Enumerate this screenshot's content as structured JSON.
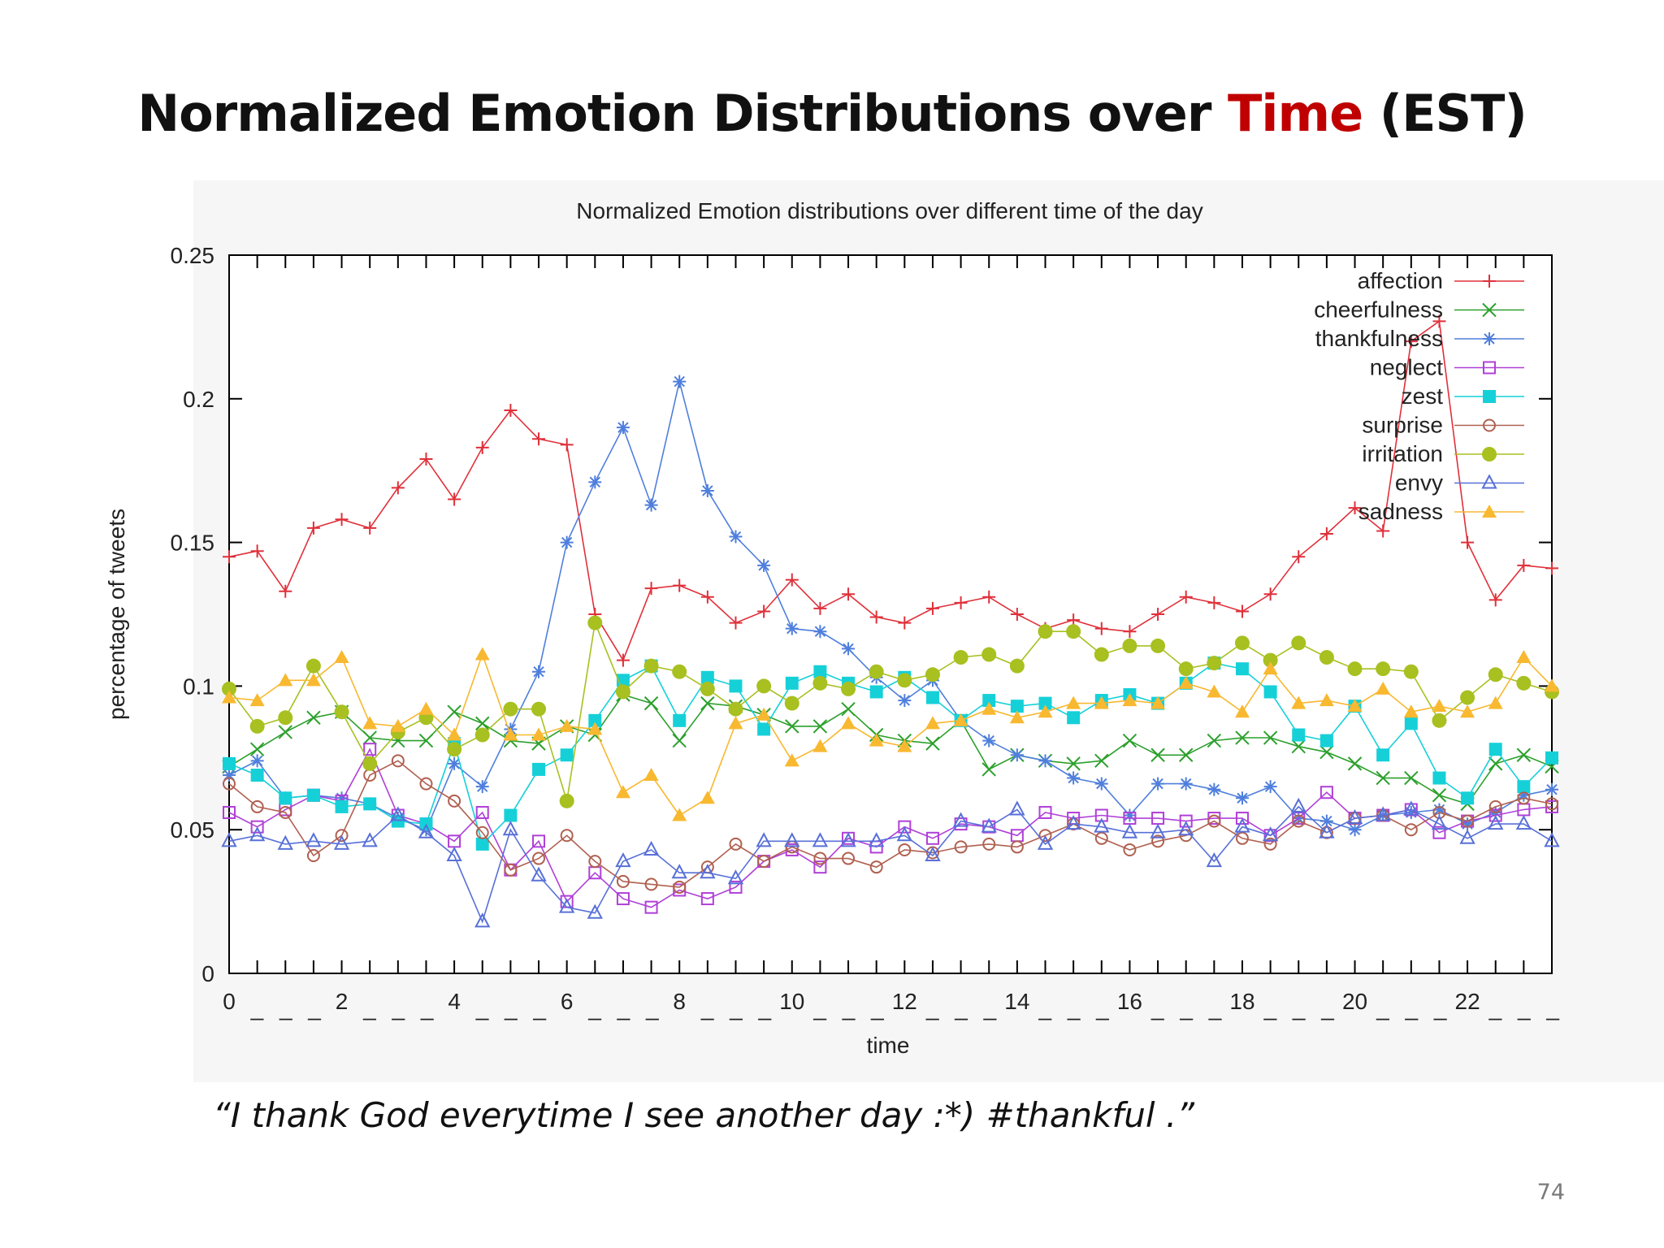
{
  "slide": {
    "title_part1": "Normalized Emotion Distributions over ",
    "title_accent": "Time",
    "title_part2": " (EST)",
    "quote": "“I thank God everytime I see another day :*) #thankful .”",
    "page_number": "74"
  },
  "chart_data": {
    "type": "line",
    "title": "Normalized Emotion distributions over different time of the day",
    "xlabel": "time",
    "ylabel": "percentage of tweets",
    "xlim": [
      0,
      23.5
    ],
    "ylim": [
      0,
      0.25
    ],
    "x_tick_labels": [
      "0",
      "2",
      "4",
      "6",
      "8",
      "10",
      "12",
      "14",
      "16",
      "18",
      "20",
      "22"
    ],
    "y_tick_labels": [
      "0",
      "0.05",
      "0.1",
      "0.15",
      "0.2",
      "0.25"
    ],
    "x_ticks_placeholder": "_ _ _",
    "legend_position": "top-right",
    "grid": false,
    "x": [
      0,
      0.5,
      1,
      1.5,
      2,
      2.5,
      3,
      3.5,
      4,
      4.5,
      5,
      5.5,
      6,
      6.5,
      7,
      7.5,
      8,
      8.5,
      9,
      9.5,
      10,
      10.5,
      11,
      11.5,
      12,
      12.5,
      13,
      13.5,
      14,
      14.5,
      15,
      15.5,
      16,
      16.5,
      17,
      17.5,
      18,
      18.5,
      19,
      19.5,
      20,
      20.5,
      21,
      21.5,
      22,
      22.5,
      23,
      23.5
    ],
    "series": [
      {
        "name": "affection",
        "color": "#e0303a",
        "marker": "plus",
        "values": [
          0.145,
          0.147,
          0.133,
          0.155,
          0.158,
          0.155,
          0.169,
          0.179,
          0.165,
          0.183,
          0.196,
          0.186,
          0.184,
          0.125,
          0.109,
          0.134,
          0.135,
          0.131,
          0.122,
          0.126,
          0.137,
          0.127,
          0.132,
          0.124,
          0.122,
          0.127,
          0.129,
          0.131,
          0.125,
          0.12,
          0.123,
          0.12,
          0.119,
          0.125,
          0.131,
          0.129,
          0.126,
          0.132,
          0.145,
          0.153,
          0.162,
          0.154,
          0.22,
          0.227,
          0.15,
          0.13,
          0.142,
          0.141
        ]
      },
      {
        "name": "cheerfulness",
        "color": "#2ca02c",
        "marker": "x",
        "values": [
          0.072,
          0.078,
          0.084,
          0.089,
          0.091,
          0.082,
          0.081,
          0.081,
          0.091,
          0.087,
          0.081,
          0.08,
          0.086,
          0.083,
          0.097,
          0.094,
          0.081,
          0.094,
          0.093,
          0.09,
          0.086,
          0.086,
          0.092,
          0.083,
          0.081,
          0.08,
          0.088,
          0.071,
          0.076,
          0.074,
          0.073,
          0.074,
          0.081,
          0.076,
          0.076,
          0.081,
          0.082,
          0.082,
          0.079,
          0.077,
          0.073,
          0.068,
          0.068,
          0.062,
          0.059,
          0.073,
          0.076,
          0.072
        ]
      },
      {
        "name": "thankfulness",
        "color": "#4f7fdc",
        "marker": "star",
        "values": [
          0.069,
          0.074,
          0.061,
          0.062,
          0.061,
          0.059,
          0.054,
          0.05,
          0.073,
          0.065,
          0.085,
          0.105,
          0.15,
          0.171,
          0.19,
          0.163,
          0.206,
          0.168,
          0.152,
          0.142,
          0.12,
          0.119,
          0.113,
          0.103,
          0.095,
          0.102,
          0.088,
          0.081,
          0.076,
          0.074,
          0.068,
          0.066,
          0.055,
          0.066,
          0.066,
          0.064,
          0.061,
          0.065,
          0.054,
          0.053,
          0.05,
          0.055,
          0.056,
          0.057,
          0.052,
          0.056,
          0.062,
          0.064
        ]
      },
      {
        "name": "neglect",
        "color": "#b040d8",
        "marker": "square-open",
        "values": [
          0.056,
          0.051,
          0.057,
          0.062,
          0.06,
          0.078,
          0.055,
          0.052,
          0.046,
          0.056,
          0.036,
          0.046,
          0.025,
          0.035,
          0.026,
          0.023,
          0.029,
          0.026,
          0.03,
          0.039,
          0.043,
          0.037,
          0.047,
          0.044,
          0.051,
          0.047,
          0.052,
          0.051,
          0.048,
          0.056,
          0.054,
          0.055,
          0.054,
          0.054,
          0.053,
          0.054,
          0.054,
          0.048,
          0.054,
          0.063,
          0.054,
          0.055,
          0.057,
          0.049,
          0.053,
          0.055,
          0.057,
          0.058
        ]
      },
      {
        "name": "zest",
        "color": "#16d0d8",
        "marker": "square-filled",
        "values": [
          0.073,
          0.069,
          0.061,
          0.062,
          0.058,
          0.059,
          0.053,
          0.052,
          0.08,
          0.045,
          0.055,
          0.071,
          0.076,
          0.088,
          0.102,
          0.107,
          0.088,
          0.103,
          0.1,
          0.085,
          0.101,
          0.105,
          0.101,
          0.098,
          0.103,
          0.096,
          0.088,
          0.095,
          0.093,
          0.094,
          0.089,
          0.095,
          0.097,
          0.094,
          0.101,
          0.108,
          0.106,
          0.098,
          0.083,
          0.081,
          0.093,
          0.076,
          0.087,
          0.068,
          0.061,
          0.078,
          0.065,
          0.075
        ]
      },
      {
        "name": "surprise",
        "color": "#b06050",
        "marker": "circle-open",
        "values": [
          0.066,
          0.058,
          0.056,
          0.041,
          0.048,
          0.069,
          0.074,
          0.066,
          0.06,
          0.049,
          0.036,
          0.04,
          0.048,
          0.039,
          0.032,
          0.031,
          0.03,
          0.037,
          0.045,
          0.039,
          0.044,
          0.04,
          0.04,
          0.037,
          0.043,
          0.042,
          0.044,
          0.045,
          0.044,
          0.048,
          0.052,
          0.047,
          0.043,
          0.046,
          0.048,
          0.053,
          0.047,
          0.045,
          0.053,
          0.049,
          0.054,
          0.055,
          0.05,
          0.056,
          0.053,
          0.058,
          0.061,
          0.059
        ]
      },
      {
        "name": "irritation",
        "color": "#a8c020",
        "marker": "circle-filled",
        "values": [
          0.099,
          0.086,
          0.089,
          0.107,
          0.091,
          0.073,
          0.084,
          0.089,
          0.078,
          0.083,
          0.092,
          0.092,
          0.06,
          0.122,
          0.098,
          0.107,
          0.105,
          0.099,
          0.092,
          0.1,
          0.094,
          0.101,
          0.099,
          0.105,
          0.102,
          0.104,
          0.11,
          0.111,
          0.107,
          0.119,
          0.119,
          0.111,
          0.114,
          0.114,
          0.106,
          0.108,
          0.115,
          0.109,
          0.115,
          0.11,
          0.106,
          0.106,
          0.105,
          0.088,
          0.096,
          0.104,
          0.101,
          0.098
        ]
      },
      {
        "name": "envy",
        "color": "#5870d8",
        "marker": "triangle-open",
        "values": [
          0.046,
          0.048,
          0.045,
          0.046,
          0.045,
          0.046,
          0.055,
          0.049,
          0.041,
          0.018,
          0.05,
          0.034,
          0.023,
          0.021,
          0.039,
          0.043,
          0.035,
          0.035,
          0.033,
          0.046,
          0.046,
          0.046,
          0.046,
          0.046,
          0.048,
          0.041,
          0.053,
          0.051,
          0.057,
          0.045,
          0.052,
          0.051,
          0.049,
          0.049,
          0.05,
          0.039,
          0.051,
          0.048,
          0.058,
          0.049,
          0.054,
          0.055,
          0.057,
          0.052,
          0.047,
          0.052,
          0.052,
          0.046
        ]
      },
      {
        "name": "sadness",
        "color": "#f8b830",
        "marker": "triangle-filled",
        "values": [
          0.096,
          0.095,
          0.102,
          0.102,
          0.11,
          0.087,
          0.086,
          0.092,
          0.083,
          0.111,
          0.083,
          0.083,
          0.086,
          0.085,
          0.063,
          0.069,
          0.055,
          0.061,
          0.087,
          0.09,
          0.074,
          0.079,
          0.087,
          0.081,
          0.079,
          0.087,
          0.088,
          0.092,
          0.089,
          0.091,
          0.094,
          0.094,
          0.095,
          0.094,
          0.101,
          0.098,
          0.091,
          0.106,
          0.094,
          0.095,
          0.093,
          0.099,
          0.091,
          0.093,
          0.091,
          0.094,
          0.11,
          0.1
        ]
      }
    ]
  }
}
